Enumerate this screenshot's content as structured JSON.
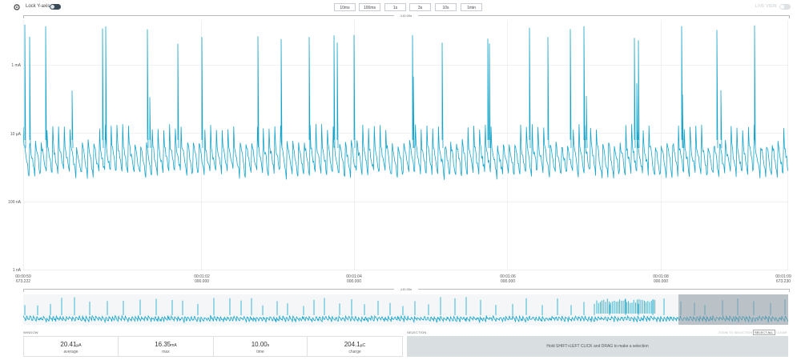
{
  "toolbar": {
    "lock_label": "Lock Y-axis",
    "live_label": "LIVE VIEW",
    "ranges": [
      "10ms",
      "100ms",
      "1s",
      "3s",
      "10s",
      "1min"
    ]
  },
  "scale_indicator": "≥10.00s",
  "chart_data": {
    "type": "line",
    "title": "",
    "ylabel": "",
    "y_scale": "log",
    "ylim": [
      "1 nA",
      "50 mA"
    ],
    "y_ticks": [
      "1 mA",
      "10 µA",
      "100 nA",
      "1 nA"
    ],
    "x_ticks": [
      {
        "line1": "00:00:59",
        "line2": "673.222"
      },
      {
        "line1": "00:01:02",
        "line2": "000.000"
      },
      {
        "line1": "00:01:04",
        "line2": "000.000"
      },
      {
        "line1": "00:01:06",
        "line2": "000.000"
      },
      {
        "line1": "00:01:08",
        "line2": "000.000"
      },
      {
        "line1": "00:01:09",
        "line2": "673.230"
      }
    ],
    "series": [
      {
        "values": "current sample trace (baseline ~1–10 µA with periodic spikes up to ~10 mA)"
      }
    ],
    "grid": true,
    "color": "#16a5c9"
  },
  "minimap": {
    "scale_indicator": "≥10.00s"
  },
  "window": {
    "title": "WINDOW",
    "stats": [
      {
        "value": "20.41",
        "unit": "µA",
        "label": "average"
      },
      {
        "value": "16.35",
        "unit": "mA",
        "label": "max"
      },
      {
        "value": "10.00",
        "unit": "s",
        "label": "time"
      },
      {
        "value": "204.1",
        "unit": "µC",
        "label": "charge"
      }
    ]
  },
  "selection": {
    "title": "SELECTION",
    "zoom_label": "ZOOM TO SELECTION",
    "select_all_label": "SELECT ALL",
    "clear_label": "CLEAR",
    "message": "Hold SHIFT+LEFT CLICK and DRAG to make a selection"
  },
  "colors": {
    "trace": "#16a5c9",
    "grid": "#e3e6e8",
    "minimap_overlay": "#8a96a0"
  }
}
